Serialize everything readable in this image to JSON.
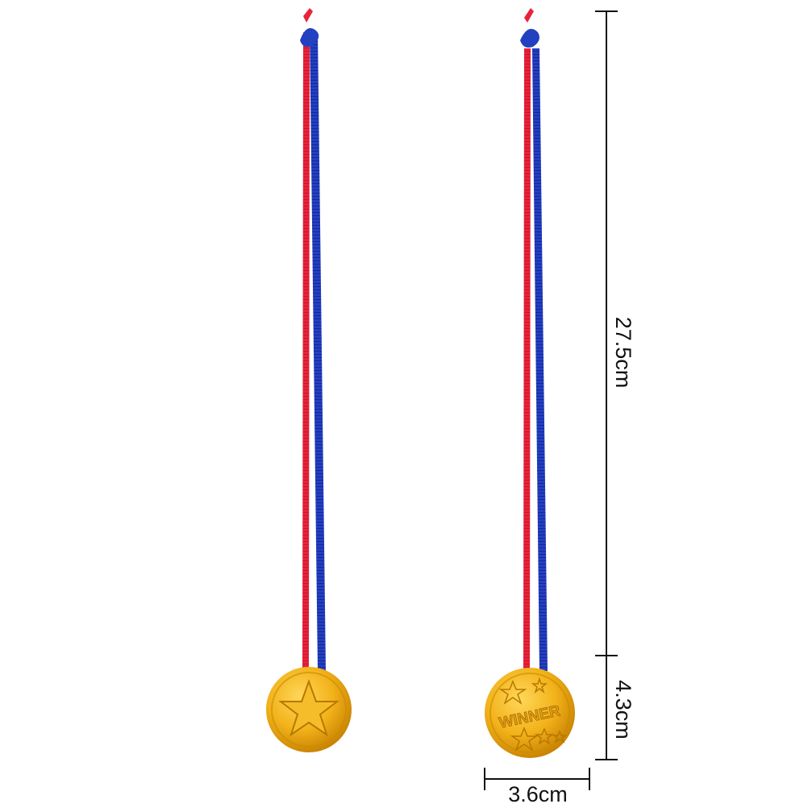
{
  "product": {
    "medal_left_emblem": "star-icon",
    "medal_right_text": "WINNER",
    "ribbon_colors": [
      "#e8233a",
      "#1f37b8"
    ],
    "medal_color": "#f2b21a"
  },
  "dimensions": {
    "ribbon_length": "27.5cm",
    "medal_height": "4.3cm",
    "medal_width": "3.6cm"
  }
}
